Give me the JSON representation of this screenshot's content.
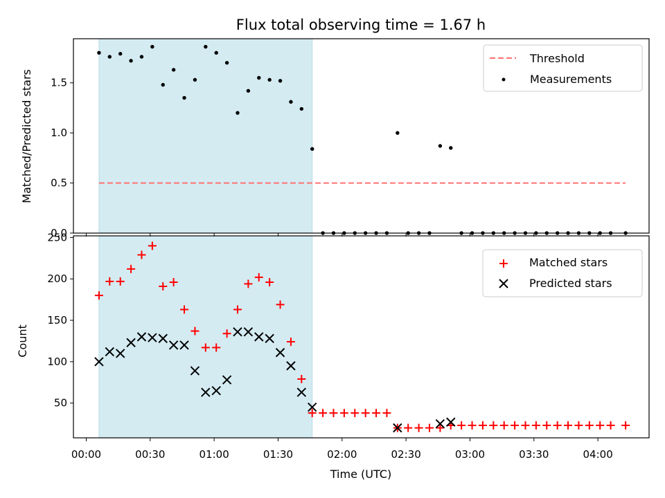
{
  "chart_data": [
    {
      "type": "scatter",
      "title": "Flux total observing time = 1.67 h",
      "ylabel": "Matched/Predicted stars",
      "xlabel": "",
      "ylim": [
        0,
        1.94
      ],
      "yticks": [
        "0.0",
        "0.5",
        "1.0",
        "1.5"
      ],
      "grid": false,
      "legend_position": "top-right",
      "shaded_interval": [
        "00:06",
        "01:46"
      ],
      "shade_color": "#add8e6",
      "threshold": {
        "name": "Threshold",
        "value": 0.5,
        "x_start": "00:06",
        "x_end": "04:13",
        "color": "#ff7070",
        "style": "dashed"
      },
      "series": [
        {
          "name": "Measurements",
          "color": "#000000",
          "marker": "dot",
          "x": [
            "00:06",
            "00:11",
            "00:16",
            "00:21",
            "00:26",
            "00:31",
            "00:36",
            "00:41",
            "00:46",
            "00:51",
            "00:56",
            "01:01",
            "01:06",
            "01:11",
            "01:16",
            "01:21",
            "01:26",
            "01:31",
            "01:36",
            "01:41",
            "01:46",
            "01:51",
            "01:56",
            "02:01",
            "02:06",
            "02:11",
            "02:16",
            "02:21",
            "02:26",
            "02:31",
            "02:36",
            "02:41",
            "02:46",
            "02:51",
            "02:56",
            "03:01",
            "03:06",
            "03:11",
            "03:16",
            "03:21",
            "03:26",
            "03:31",
            "03:36",
            "03:41",
            "03:46",
            "03:51",
            "03:56",
            "04:01",
            "04:06",
            "04:13"
          ],
          "y": [
            1.8,
            1.76,
            1.79,
            1.72,
            1.76,
            1.86,
            1.48,
            1.63,
            1.35,
            1.53,
            1.86,
            1.8,
            1.7,
            1.2,
            1.42,
            1.55,
            1.53,
            1.52,
            1.31,
            1.24,
            0.84,
            0,
            0,
            0,
            0,
            0,
            0,
            0,
            1.0,
            0,
            0,
            0,
            0.87,
            0.85,
            0,
            0,
            0,
            0,
            0,
            0,
            0,
            0,
            0,
            0,
            0,
            0,
            0,
            0,
            0,
            0
          ]
        }
      ]
    },
    {
      "type": "scatter",
      "title": "",
      "xlabel": "Time (UTC)",
      "ylabel": "Count",
      "ylim": [
        8,
        252
      ],
      "yticks": [
        "50",
        "100",
        "150",
        "200",
        "250"
      ],
      "x_range": [
        "23:54",
        "04:24"
      ],
      "xticks": [
        "00:00",
        "00:30",
        "01:00",
        "01:30",
        "02:00",
        "02:30",
        "03:00",
        "03:30",
        "04:00"
      ],
      "grid": false,
      "legend_position": "top-right",
      "shaded_interval": [
        "00:06",
        "01:46"
      ],
      "shade_color": "#add8e6",
      "series": [
        {
          "name": "Matched stars",
          "color": "#ff0000",
          "marker": "plus",
          "x": [
            "00:06",
            "00:11",
            "00:16",
            "00:21",
            "00:26",
            "00:31",
            "00:36",
            "00:41",
            "00:46",
            "00:51",
            "00:56",
            "01:01",
            "01:06",
            "01:11",
            "01:16",
            "01:21",
            "01:26",
            "01:31",
            "01:36",
            "01:41",
            "01:46",
            "01:51",
            "01:56",
            "02:01",
            "02:06",
            "02:11",
            "02:16",
            "02:21",
            "02:26",
            "02:31",
            "02:36",
            "02:41",
            "02:46",
            "02:51",
            "02:56",
            "03:01",
            "03:06",
            "03:11",
            "03:16",
            "03:21",
            "03:26",
            "03:31",
            "03:36",
            "03:41",
            "03:46",
            "03:51",
            "03:56",
            "04:01",
            "04:06",
            "04:13"
          ],
          "y": [
            180,
            197,
            197,
            212,
            229,
            240,
            191,
            196,
            163,
            137,
            117,
            117,
            134,
            163,
            194,
            202,
            196,
            169,
            124,
            79,
            38,
            38,
            38,
            38,
            38,
            38,
            38,
            38,
            20,
            20,
            20,
            20,
            20,
            23,
            23,
            23,
            23,
            23,
            23,
            23,
            23,
            23,
            23,
            23,
            23,
            23,
            23,
            23,
            23,
            23
          ]
        },
        {
          "name": "Predicted stars",
          "color": "#000000",
          "marker": "x",
          "x": [
            "00:06",
            "00:11",
            "00:16",
            "00:21",
            "00:26",
            "00:31",
            "00:36",
            "00:41",
            "00:46",
            "00:51",
            "00:56",
            "01:01",
            "01:06",
            "01:11",
            "01:16",
            "01:21",
            "01:26",
            "01:31",
            "01:36",
            "01:41",
            "01:46",
            "02:26",
            "02:46",
            "02:51"
          ],
          "y": [
            100,
            112,
            110,
            123,
            130,
            129,
            128,
            120,
            120,
            89,
            63,
            65,
            78,
            136,
            136,
            130,
            128,
            111,
            95,
            63,
            45,
            20,
            25,
            27
          ]
        }
      ]
    }
  ]
}
